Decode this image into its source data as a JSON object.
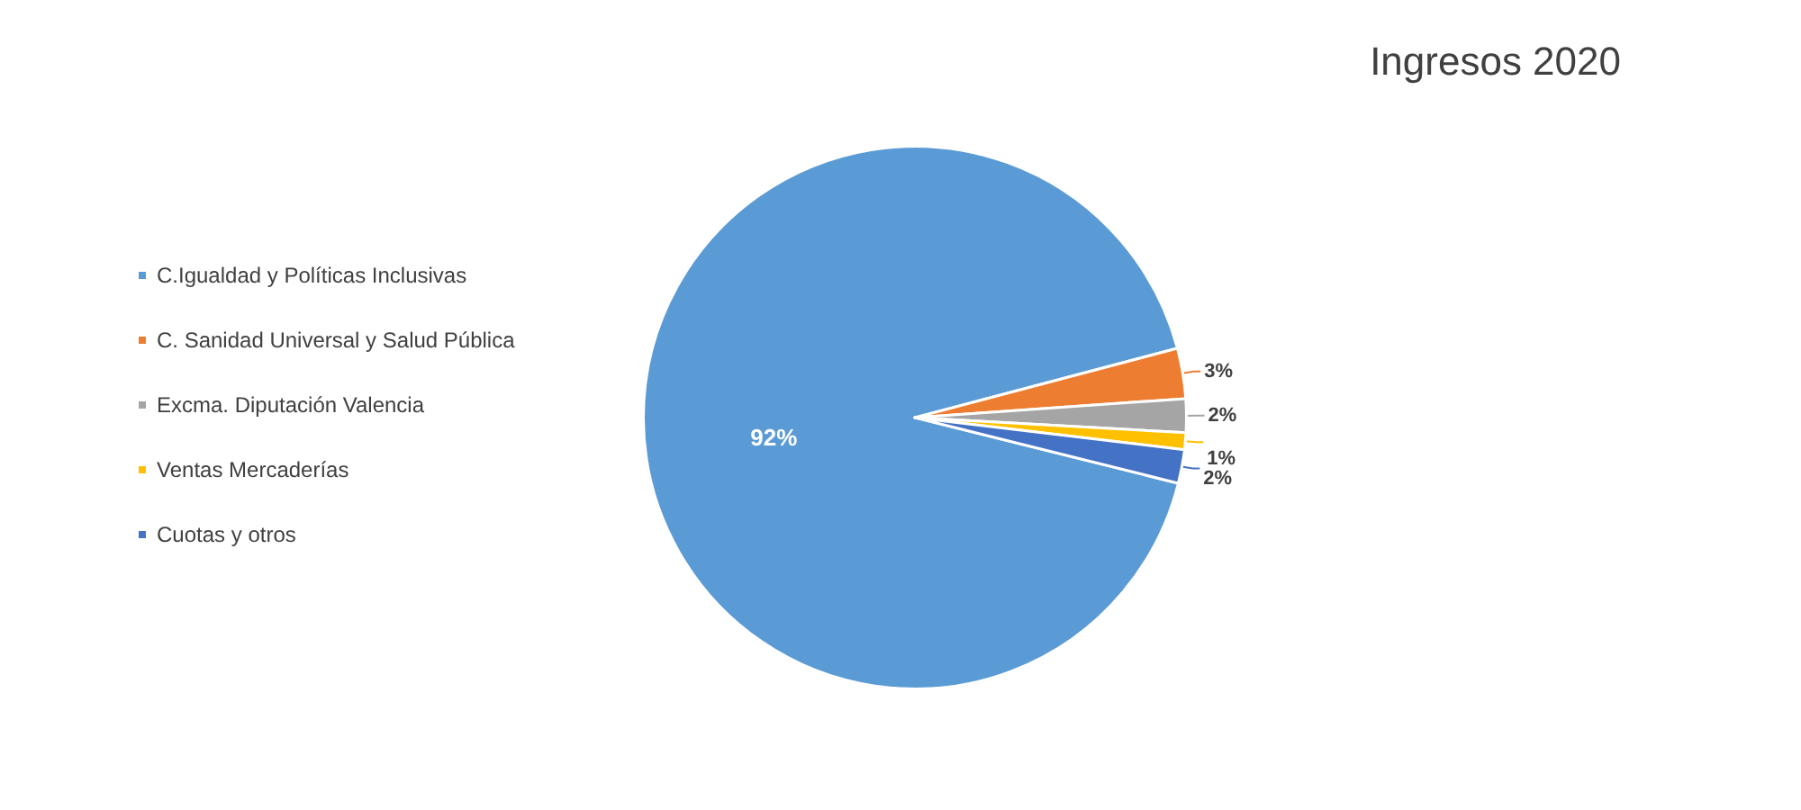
{
  "chart_data": {
    "type": "pie",
    "title": "Ingresos 2020",
    "categories": [
      "C.Igualdad y Políticas Inclusivas",
      "C. Sanidad Universal y Salud Pública",
      "Excma. Diputación Valencia",
      "Ventas Mercaderías",
      "Cuotas y otros"
    ],
    "values": [
      92,
      3,
      2,
      1,
      2
    ],
    "colors": [
      "#5b9bd5",
      "#ed7d31",
      "#a5a5a5",
      "#ffc000",
      "#4472c4"
    ],
    "value_labels": [
      "92%",
      "3%",
      "2%",
      "1%",
      "2%"
    ],
    "legend": "left"
  }
}
